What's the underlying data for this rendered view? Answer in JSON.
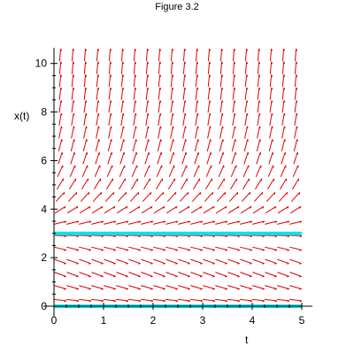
{
  "figure": {
    "title": "Figure 3.2"
  },
  "colors": {
    "field": "#e00000",
    "solution": "#00e5ee",
    "axis": "#000000"
  },
  "chart_data": {
    "type": "direction_field",
    "xlabel": "t",
    "ylabel": "x(t)",
    "xlim": [
      0,
      5
    ],
    "ylim": [
      0,
      10.5
    ],
    "x_ticks": [
      {
        "value": 0,
        "label": "0"
      },
      {
        "value": 1,
        "label": "1"
      },
      {
        "value": 2,
        "label": "2"
      },
      {
        "value": 3,
        "label": "3"
      },
      {
        "value": 4,
        "label": "4"
      },
      {
        "value": 5,
        "label": "5"
      }
    ],
    "y_ticks": [
      {
        "value": 0,
        "label": "0"
      },
      {
        "value": 2,
        "label": "2"
      },
      {
        "value": 4,
        "label": "4"
      },
      {
        "value": 6,
        "label": "6"
      },
      {
        "value": 8,
        "label": "8"
      },
      {
        "value": 10,
        "label": "10"
      }
    ],
    "field_grid": {
      "t_count": 20,
      "x_count": 20
    },
    "equilibrium_solutions": [
      {
        "x": 0,
        "t_range": [
          0,
          5
        ]
      },
      {
        "x": 3,
        "t_range": [
          0,
          5
        ]
      }
    ]
  }
}
